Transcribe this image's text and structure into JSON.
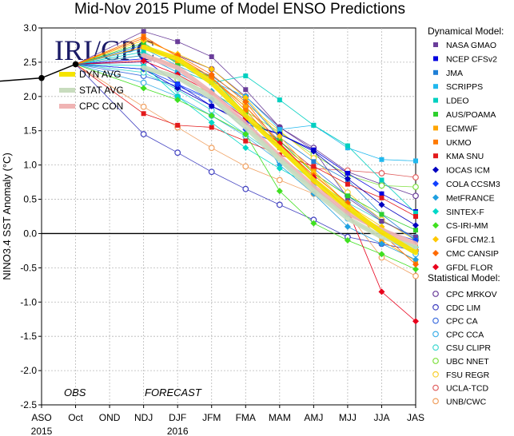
{
  "chart_data": {
    "type": "line",
    "title": "Mid-Nov 2015 Plume of Model ENSO Predictions",
    "ylabel": "NINO3.4 SST Anomaly (°C)",
    "ylim": [
      -2.5,
      3.0
    ],
    "yticks": [
      "3.0",
      "2.5",
      "2.0",
      "1.5",
      "1.0",
      "0.5",
      "0.0",
      "-0.5",
      "-1.0",
      "-1.5",
      "-2.0",
      "-2.5"
    ],
    "categories": [
      "ASO",
      "Oct",
      "OND",
      "NDJ",
      "DJF",
      "JFM",
      "FMA",
      "MAM",
      "AMJ",
      "MJJ",
      "JJA",
      "JAS"
    ],
    "year_labels": [
      {
        "label": "2015",
        "at": "ASO"
      },
      {
        "label": "2016",
        "at": "DJF"
      }
    ],
    "grid": true,
    "logo": "IRI/CPC",
    "annotations": [
      "OBS",
      "FORECAST"
    ],
    "observed": {
      "name": "OBS",
      "values": [
        2.27,
        2.47
      ]
    },
    "averages": [
      {
        "name": "DYN AVG",
        "color": "#f5e400",
        "values": [
          2.72,
          2.55,
          2.2,
          1.72,
          1.25,
          0.78,
          0.38,
          0.02,
          -0.28
        ]
      },
      {
        "name": "STAT AVG",
        "color": "#c8dcbe",
        "values": [
          2.42,
          2.28,
          1.98,
          1.55,
          1.08,
          0.62,
          0.22,
          -0.05,
          -0.2
        ]
      },
      {
        "name": "CPC CON",
        "color": "#f0b4b4",
        "values": [
          2.6,
          2.42,
          2.05,
          1.6,
          1.12,
          0.68,
          0.3,
          0.05,
          -0.15
        ]
      }
    ],
    "dynamical_header": "Dynamical Model:",
    "statistical_header": "Statistical Model:",
    "dynamical": [
      {
        "name": "NASA GMAO",
        "color": "#6a3d9a",
        "values": [
          2.95,
          2.8,
          2.58,
          2.1,
          1.55,
          1.22,
          0.52,
          0.18,
          -0.05
        ]
      },
      {
        "name": "NCEP CFSv2",
        "color": "#0000e0",
        "values": [
          2.55,
          2.18,
          1.86,
          1.63,
          1.45,
          1.22,
          0.88,
          0.58,
          0.32
        ]
      },
      {
        "name": "JMA",
        "color": "#1f7fd6",
        "values": [
          2.75,
          2.5,
          2.3,
          1.95,
          1.4,
          1.05,
          0.78,
          0.28,
          -0.1
        ]
      },
      {
        "name": "SCRIPPS",
        "color": "#20b8ee",
        "values": [
          2.7,
          2.45,
          2.22,
          2.0,
          1.52,
          1.58,
          1.25,
          1.08,
          1.06
        ]
      },
      {
        "name": "LDEO",
        "color": "#00d0c0",
        "values": [
          2.65,
          2.4,
          2.2,
          2.3,
          1.95,
          1.58,
          1.28,
          0.78,
          0.3
        ]
      },
      {
        "name": "AUS/POAMA",
        "color": "#2ed02e",
        "values": [
          2.78,
          2.48,
          2.28,
          1.75,
          1.35,
          0.88,
          0.55,
          0.28,
          0.05
        ]
      },
      {
        "name": "ECMWF",
        "color": "#ffa500",
        "values": [
          2.72,
          2.52,
          2.26,
          1.85,
          1.3,
          0.92,
          0.42,
          -0.1,
          -0.4
        ]
      },
      {
        "name": "UKMO",
        "color": "#ff7a00",
        "values": [
          2.88,
          2.58,
          2.28,
          1.8,
          1.25,
          0.75,
          0.3,
          0.0,
          -0.2
        ]
      },
      {
        "name": "KMA SNU",
        "color": "#e31a1c",
        "values": [
          1.75,
          1.58,
          1.55,
          1.35,
          1.15,
          0.98,
          0.72,
          0.52,
          0.25
        ]
      },
      {
        "name": "IOCAS ICM",
        "color": "#0000c0",
        "values": [
          2.4,
          2.12,
          1.86,
          1.6,
          1.45,
          1.2,
          0.8,
          0.42,
          0.12
        ]
      },
      {
        "name": "COLA CCSM3",
        "color": "#1040ff",
        "values": [
          2.4,
          2.18,
          1.96,
          1.52,
          1.3,
          0.8,
          0.35,
          0.05,
          -0.1
        ]
      },
      {
        "name": "MetFRANCE",
        "color": "#20a0e0",
        "values": [
          2.6,
          2.35,
          2.08,
          1.7,
          1.0,
          0.58,
          0.1,
          -0.15,
          -0.38
        ]
      },
      {
        "name": "SINTEX-F",
        "color": "#00d8c8",
        "values": [
          2.45,
          2.0,
          1.62,
          1.25,
          0.95,
          0.68,
          0.28,
          0.05,
          -0.2
        ]
      },
      {
        "name": "CS-IRI-MM",
        "color": "#40e020",
        "values": [
          2.12,
          1.95,
          1.72,
          1.45,
          0.62,
          0.15,
          -0.1,
          -0.3,
          -0.52
        ]
      },
      {
        "name": "GFDL CM2.1",
        "color": "#ffc800",
        "values": [
          2.82,
          2.62,
          2.4,
          1.98,
          1.42,
          0.88,
          0.42,
          0.1,
          -0.25
        ]
      },
      {
        "name": "CMC CANSIP",
        "color": "#ff6a00",
        "values": [
          2.85,
          2.6,
          2.32,
          1.92,
          1.3,
          0.85,
          0.45,
          0.0,
          -0.45
        ]
      },
      {
        "name": "GFDL FLOR",
        "color": "#e8001c",
        "values": [
          2.52,
          2.32,
          2.05,
          1.68,
          1.32,
          0.82,
          0.35,
          -0.85,
          -1.28
        ]
      }
    ],
    "statistical": [
      {
        "name": "CPC MRKOV",
        "color": "#6a3d9a",
        "values": [
          2.5,
          2.6,
          2.4,
          2.0,
          1.55,
          1.25,
          0.9,
          0.72,
          0.55
        ]
      },
      {
        "name": "CDC LIM",
        "color": "#4040c0",
        "values": [
          1.45,
          1.18,
          0.9,
          0.65,
          0.42,
          0.2,
          -0.05,
          -0.15,
          -0.25
        ]
      },
      {
        "name": "CPC CA",
        "color": "#4070e0",
        "values": [
          2.3,
          2.15,
          1.95,
          1.65,
          1.35,
          0.95,
          0.55,
          0.2,
          -0.08
        ]
      },
      {
        "name": "CPC CCA",
        "color": "#40b0e8",
        "values": [
          2.2,
          2.0,
          1.72,
          1.42,
          1.05,
          0.68,
          0.22,
          -0.05,
          -0.3
        ]
      },
      {
        "name": "CSU CLIPR",
        "color": "#40d8d0",
        "values": [
          2.35,
          2.1,
          1.8,
          1.45,
          1.1,
          0.78,
          0.45,
          0.18,
          -0.05
        ]
      },
      {
        "name": "UBC NNET",
        "color": "#80e040",
        "values": [
          2.4,
          2.25,
          2.05,
          1.78,
          1.48,
          1.15,
          0.85,
          0.7,
          0.68
        ]
      },
      {
        "name": "FSU REGR",
        "color": "#f8d030",
        "values": [
          2.6,
          2.45,
          2.22,
          1.9,
          1.5,
          1.1,
          0.6,
          0.2,
          -0.1
        ]
      },
      {
        "name": "UCLA-TCD",
        "color": "#e06060",
        "values": [
          2.72,
          2.55,
          2.28,
          1.85,
          1.35,
          0.95,
          0.92,
          0.88,
          0.82
        ]
      },
      {
        "name": "UNB/CWC",
        "color": "#f0a060",
        "values": [
          1.85,
          1.55,
          1.25,
          0.98,
          0.78,
          0.58,
          0.3,
          -0.35,
          -0.62
        ]
      }
    ]
  }
}
